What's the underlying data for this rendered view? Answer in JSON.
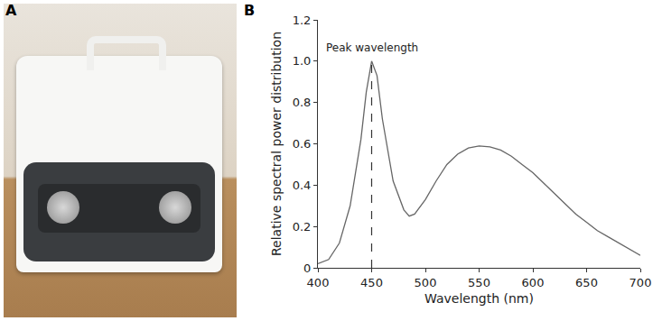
{
  "panel_labels": [
    "A",
    "B"
  ],
  "chart_data": {
    "type": "line",
    "x_label": "Wavelength (nm)",
    "y_label": "Relative spectral power distribution",
    "x": [
      400,
      410,
      420,
      430,
      440,
      445,
      450,
      455,
      460,
      470,
      480,
      485,
      490,
      500,
      510,
      520,
      530,
      540,
      550,
      560,
      570,
      580,
      590,
      600,
      610,
      620,
      630,
      640,
      650,
      660,
      670,
      680,
      690,
      700
    ],
    "values": [
      0.02,
      0.04,
      0.12,
      0.3,
      0.62,
      0.85,
      1.0,
      0.93,
      0.72,
      0.42,
      0.28,
      0.25,
      0.26,
      0.33,
      0.42,
      0.5,
      0.55,
      0.58,
      0.59,
      0.585,
      0.57,
      0.54,
      0.5,
      0.46,
      0.41,
      0.36,
      0.31,
      0.26,
      0.22,
      0.18,
      0.15,
      0.12,
      0.09,
      0.06
    ],
    "color": "#666666",
    "line_style": "solid",
    "annotations": [
      {
        "text": "Peak wavelength",
        "x": 450,
        "line_style": "dash"
      }
    ],
    "xlim": [
      400,
      700
    ],
    "xticks": [
      400,
      450,
      500,
      550,
      600,
      650,
      700
    ],
    "ylim": [
      0,
      1.2
    ],
    "yticks": [
      0,
      0.2,
      0.4,
      0.6,
      0.8,
      {
        "value": 1,
        "label": "1.0"
      },
      1.2
    ],
    "grid": false
  }
}
